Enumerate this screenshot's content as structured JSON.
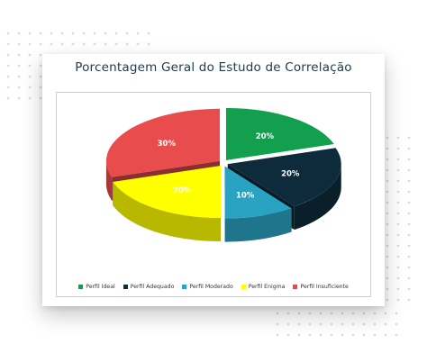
{
  "chart_data": {
    "type": "pie",
    "title": "Porcentagem Geral do Estudo de Correlação",
    "categories": [
      "Perfil Ideal",
      "Perfil Adequado",
      "Perfil Moderado",
      "Perfil Enigma",
      "Perfil Insuficiente"
    ],
    "values": [
      20,
      20,
      10,
      20,
      30
    ],
    "value_labels": [
      "20%",
      "20%",
      "10%",
      "20%",
      "30%"
    ],
    "colors": [
      "#12a04e",
      "#0d2b3a",
      "#2aa3c2",
      "#ffff00",
      "#e84c4c"
    ],
    "style": "3d-exploded",
    "legend_position": "bottom"
  }
}
